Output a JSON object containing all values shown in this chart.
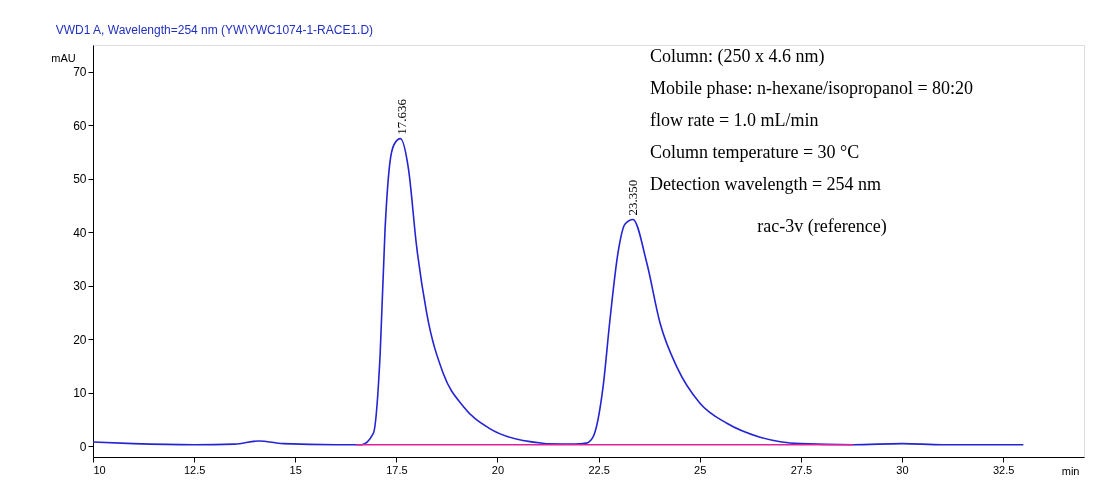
{
  "chart_data": {
    "type": "line",
    "title": "VWD1 A, Wavelength=254 nm (YW\\YWC1074-1-RACE1.D)",
    "xlabel": "min",
    "ylabel": "mAU",
    "xlim": [
      10,
      34.5
    ],
    "xticks": [
      10,
      12.5,
      15,
      17.5,
      20,
      22.5,
      25,
      27.5,
      30,
      32.5
    ],
    "ylim": [
      -2,
      75
    ],
    "yticks": [
      0,
      10,
      20,
      30,
      40,
      50,
      60,
      70
    ],
    "grid": false,
    "marker": "none",
    "line_style": "solid",
    "series": [
      {
        "color": "#2424d4",
        "x": [
          10,
          11,
          12.5,
          13.5,
          14.1,
          14.7,
          16,
          16.5,
          16.64,
          16.93,
          17.1,
          17.22,
          17.34,
          17.45,
          17.6,
          17.8,
          18.0,
          18.25,
          18.66,
          19.16,
          19.81,
          20.63,
          21.62,
          21.9,
          22.2,
          22.36,
          22.61,
          22.78,
          22.98,
          23.15,
          23.35,
          23.69,
          24.02,
          24.43,
          25.0,
          25.67,
          26.49,
          27.48,
          28.8,
          30,
          31,
          33
        ],
        "values": [
          0.8,
          0.5,
          0.3,
          0.4,
          1.0,
          0.5,
          0.3,
          0.3,
          0.3,
          2.4,
          17.4,
          40.5,
          53,
          56.5,
          57.5,
          51.8,
          37.4,
          24.9,
          13.6,
          7.4,
          3.3,
          1.1,
          0.4,
          0.4,
          0.6,
          1.7,
          11.1,
          23.6,
          36.2,
          41.5,
          42.4,
          34.3,
          23.0,
          14.9,
          8.1,
          4.3,
          1.7,
          0.5,
          0.3,
          0.5,
          0.3,
          0.3
        ]
      },
      {
        "color": "#e0209a",
        "x": [
          16.5,
          28.8
        ],
        "values": [
          0.3,
          0.3
        ]
      }
    ],
    "annotations": [
      {
        "text": "17.636",
        "x": 17.636,
        "y": 57.5
      },
      {
        "text": "23.350",
        "x": 23.35,
        "y": 42.4
      },
      "Column: (250 x 4.6 nm)",
      "Mobile phase: n-hexane/isopropanol = 80:20",
      "flow rate = 1.0 mL/min",
      "Column temperature = 30 °C",
      "Detection wavelength = 254 nm",
      "rac-3v (reference)"
    ]
  }
}
